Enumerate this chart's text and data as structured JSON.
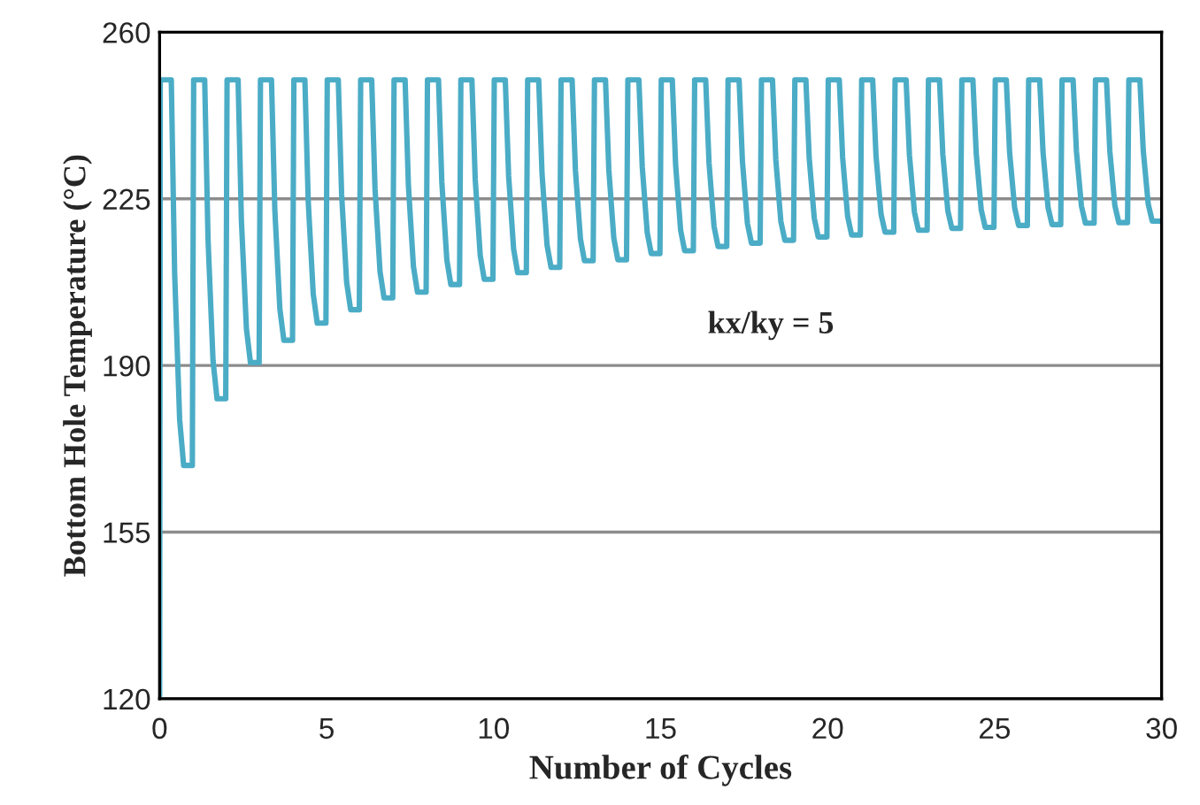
{
  "chart_data": {
    "type": "line",
    "xlabel": "Number of Cycles",
    "ylabel": "Bottom Hole Temperature (°C)",
    "annotations": [
      "kx/ky = 5"
    ],
    "xlim": [
      0,
      30
    ],
    "xticks": [
      0,
      5,
      10,
      15,
      20,
      25,
      30
    ],
    "ylim": [
      120,
      260
    ],
    "yticks": [
      120,
      155,
      190,
      225,
      260
    ],
    "grid": "y",
    "marker": "none",
    "line_style": "solid",
    "series": [
      {
        "color": "#4bacc6",
        "x": [
          0,
          0.02,
          0.35,
          0.45,
          0.6,
          0.72,
          0.98,
          1.02,
          1.35,
          1.45,
          1.6,
          1.72,
          1.98,
          2.02,
          2.35,
          2.45,
          2.6,
          2.72,
          2.98,
          3.02,
          3.35,
          3.45,
          3.6,
          3.72,
          3.98,
          4.02,
          4.35,
          4.45,
          4.6,
          4.72,
          4.98,
          5.02,
          5.35,
          5.45,
          5.6,
          5.72,
          5.98,
          6.02,
          6.35,
          6.45,
          6.6,
          6.72,
          6.98,
          7.02,
          7.35,
          7.45,
          7.6,
          7.72,
          7.98,
          8.02,
          8.35,
          8.45,
          8.6,
          8.72,
          8.98,
          9.02,
          9.35,
          9.45,
          9.6,
          9.72,
          9.98,
          10.02,
          10.35,
          10.45,
          10.6,
          10.72,
          10.98,
          11.02,
          11.35,
          11.45,
          11.6,
          11.72,
          11.98,
          12.02,
          12.35,
          12.45,
          12.6,
          12.72,
          12.98,
          13.02,
          13.35,
          13.45,
          13.6,
          13.72,
          13.98,
          14.02,
          14.35,
          14.45,
          14.6,
          14.72,
          14.98,
          15.02,
          15.35,
          15.45,
          15.6,
          15.72,
          15.98,
          16.02,
          16.35,
          16.45,
          16.6,
          16.72,
          16.98,
          17.02,
          17.35,
          17.45,
          17.6,
          17.72,
          17.98,
          18.02,
          18.35,
          18.45,
          18.6,
          18.72,
          18.98,
          19.02,
          19.35,
          19.45,
          19.6,
          19.72,
          19.98,
          20.02,
          20.35,
          20.45,
          20.6,
          20.72,
          20.98,
          21.02,
          21.35,
          21.45,
          21.6,
          21.72,
          21.98,
          22.02,
          22.35,
          22.45,
          22.6,
          22.72,
          22.98,
          23.02,
          23.35,
          23.45,
          23.6,
          23.72,
          23.98,
          24.02,
          24.35,
          24.45,
          24.6,
          24.72,
          24.98,
          25.02,
          25.35,
          25.45,
          25.6,
          25.72,
          25.98,
          26.02,
          26.35,
          26.45,
          26.6,
          26.72,
          26.98,
          27.02,
          27.35,
          27.45,
          27.6,
          27.72,
          27.98,
          28.02,
          28.35,
          28.45,
          28.6,
          28.72,
          28.98,
          29.02,
          29.35,
          29.45,
          29.6,
          29.72,
          29.98
        ],
        "values": [
          120,
          250,
          250,
          209.5,
          178.7,
          169,
          169,
          250,
          250,
          216.5,
          191,
          183,
          183,
          250,
          250,
          220.3,
          197.7,
          190.6,
          190.6,
          250,
          250,
          222.7,
          201.9,
          195.3,
          195.3,
          250,
          250,
          224.5,
          205,
          198.9,
          198.9,
          250,
          250,
          225.9,
          207.5,
          201.7,
          201.7,
          250,
          250,
          227.1,
          209.7,
          204.2,
          204.2,
          250,
          250,
          227.7,
          210.8,
          205.4,
          205.4,
          250,
          250,
          228.5,
          212.2,
          207,
          207,
          250,
          250,
          229.1,
          213.1,
          208.1,
          208.1,
          250,
          250,
          229.8,
          214.4,
          209.5,
          209.5,
          250,
          250,
          230.3,
          215.3,
          210.6,
          210.6,
          250,
          250,
          231,
          216.6,
          212,
          212,
          250,
          250,
          231.1,
          216.7,
          212.2,
          212.2,
          250,
          250,
          231.8,
          217.9,
          213.5,
          213.5,
          250,
          250,
          232.1,
          218.4,
          214.1,
          214.1,
          250,
          250,
          232.5,
          219.2,
          215,
          215,
          250,
          250,
          232.9,
          219.8,
          215.7,
          215.7,
          250,
          250,
          233.2,
          220.3,
          216.3,
          216.3,
          250,
          250,
          233.5,
          221,
          217,
          217,
          250,
          250,
          233.7,
          221.3,
          217.4,
          217.4,
          250,
          250,
          234,
          221.8,
          218,
          218,
          250,
          250,
          234.2,
          222.2,
          218.4,
          218.4,
          250,
          250,
          234.4,
          222.5,
          218.8,
          218.8,
          250,
          250,
          234.5,
          222.7,
          219,
          219,
          250,
          250,
          234.7,
          223.1,
          219.4,
          219.4,
          250,
          250,
          234.8,
          223.2,
          219.6,
          219.6,
          250,
          250,
          235,
          223.5,
          219.9,
          219.9,
          250,
          250,
          235,
          223.6,
          220,
          220,
          250,
          250,
          235.2,
          223.9,
          220.3,
          220.3
        ]
      }
    ]
  }
}
